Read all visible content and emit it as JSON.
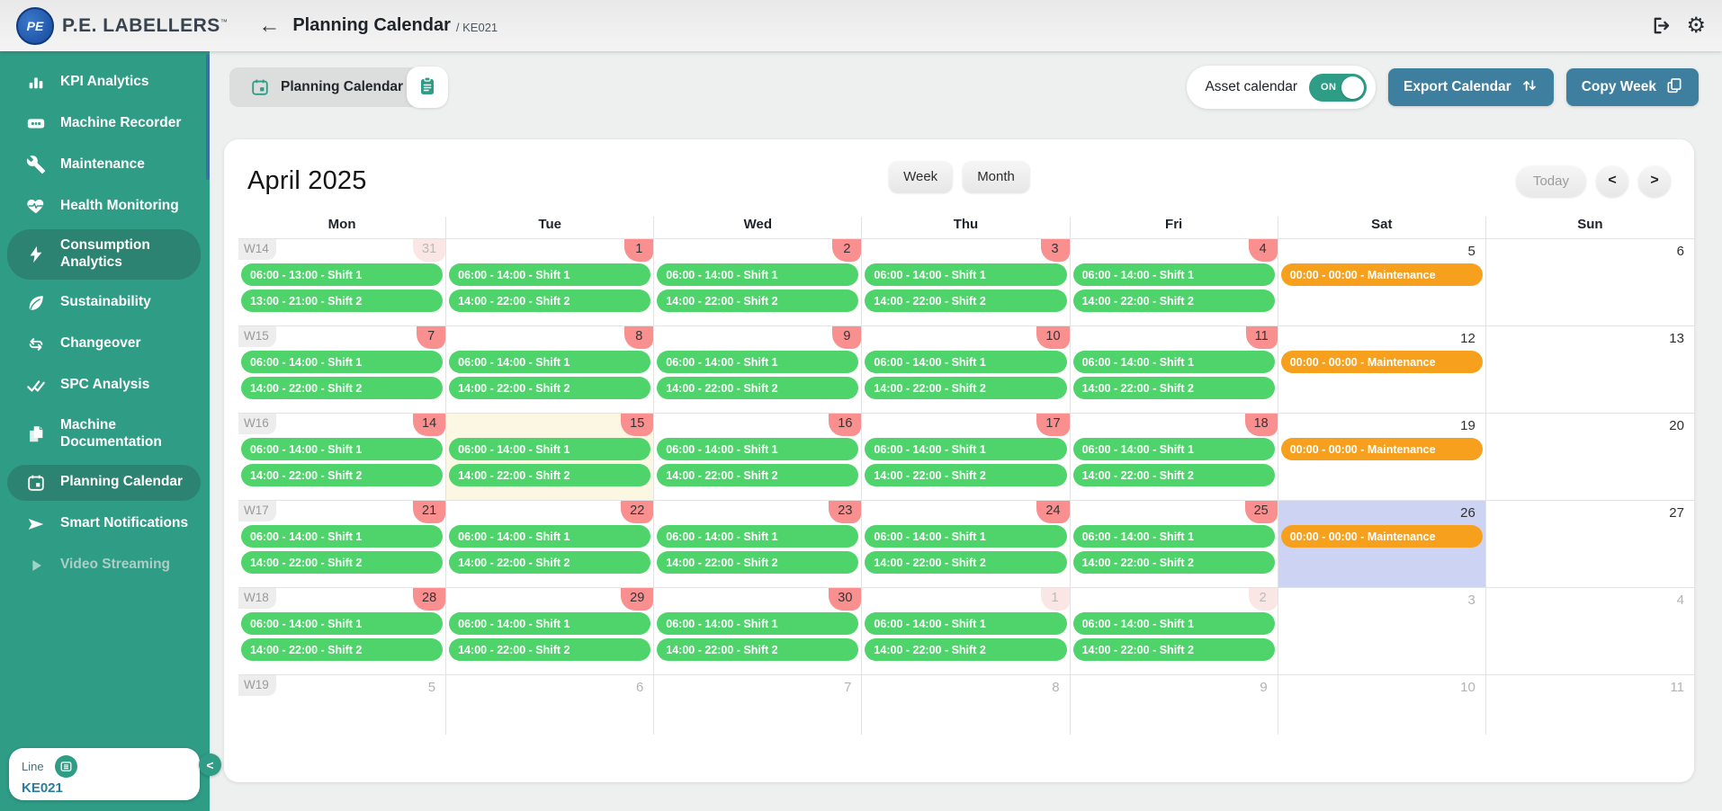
{
  "topbar": {
    "logo_text": "PE",
    "brand": "P.E. LABELLERS",
    "trademark": "™",
    "back_icon": "←",
    "title": "Planning Calendar",
    "subtitle": "/ KE021",
    "gear_icon": "⚙"
  },
  "sidebar": {
    "items": [
      {
        "label": "KPI Analytics",
        "icon": "kpi-analytics"
      },
      {
        "label": "Machine Recorder",
        "icon": "machine-recorder"
      },
      {
        "label": "Maintenance",
        "icon": "maintenance"
      },
      {
        "label": "Health Monitoring",
        "icon": "health-monitoring"
      },
      {
        "label": "Consumption Analytics",
        "icon": "consumption-analytics",
        "active": true
      },
      {
        "label": "Sustainability",
        "icon": "sustainability"
      },
      {
        "label": "Changeover",
        "icon": "changeover"
      },
      {
        "label": "SPC Analysis",
        "icon": "spc-analysis"
      },
      {
        "label": "Machine Documentation",
        "icon": "machine-documentation"
      },
      {
        "label": "Planning Calendar",
        "icon": "planning-calendar",
        "active": true
      },
      {
        "label": "Smart Notifications",
        "icon": "smart-notifications"
      },
      {
        "label": "Video Streaming",
        "icon": "video-streaming",
        "disabled": true
      }
    ],
    "line_card": {
      "label": "Line",
      "value": "KE021",
      "icon": "line-list"
    },
    "collapse_icon": "<"
  },
  "toolbar": {
    "tab_label": "Planning Calendar",
    "asset_calendar_label": "Asset calendar",
    "toggle_state": "ON",
    "export_label": "Export Calendar",
    "copy_label": "Copy Week"
  },
  "calendar": {
    "title": "April 2025",
    "view_week": "Week",
    "view_month": "Month",
    "today_label": "Today",
    "prev_icon": "<",
    "next_icon": ">",
    "day_headers": [
      "Mon",
      "Tue",
      "Wed",
      "Thu",
      "Fri",
      "Sat",
      "Sun"
    ],
    "weeks": [
      {
        "label": "W14",
        "days": [
          {
            "date": "31",
            "badge": "faded",
            "events": [
              {
                "label": "06:00 - 13:00 - Shift 1",
                "type": "shift"
              },
              {
                "label": "13:00 - 21:00 - Shift 2",
                "type": "shift"
              }
            ]
          },
          {
            "date": "1",
            "badge": "pink",
            "events": [
              {
                "label": "06:00 - 14:00 - Shift 1",
                "type": "shift"
              },
              {
                "label": "14:00 - 22:00 - Shift 2",
                "type": "shift"
              }
            ]
          },
          {
            "date": "2",
            "badge": "pink",
            "events": [
              {
                "label": "06:00 - 14:00 - Shift 1",
                "type": "shift"
              },
              {
                "label": "14:00 - 22:00 - Shift 2",
                "type": "shift"
              }
            ]
          },
          {
            "date": "3",
            "badge": "pink",
            "events": [
              {
                "label": "06:00 - 14:00 - Shift 1",
                "type": "shift"
              },
              {
                "label": "14:00 - 22:00 - Shift 2",
                "type": "shift"
              }
            ]
          },
          {
            "date": "4",
            "badge": "pink",
            "events": [
              {
                "label": "06:00 - 14:00 - Shift 1",
                "type": "shift"
              },
              {
                "label": "14:00 - 22:00 - Shift 2",
                "type": "shift"
              }
            ]
          },
          {
            "date": "5",
            "badge": "none",
            "events": [
              {
                "label": "00:00 - 00:00 - Maintenance",
                "type": "maintenance"
              }
            ]
          },
          {
            "date": "6",
            "badge": "none",
            "events": []
          }
        ]
      },
      {
        "label": "W15",
        "days": [
          {
            "date": "7",
            "badge": "pink",
            "events": [
              {
                "label": "06:00 - 14:00 - Shift 1",
                "type": "shift"
              },
              {
                "label": "14:00 - 22:00 - Shift 2",
                "type": "shift"
              }
            ]
          },
          {
            "date": "8",
            "badge": "pink",
            "events": [
              {
                "label": "06:00 - 14:00 - Shift 1",
                "type": "shift"
              },
              {
                "label": "14:00 - 22:00 - Shift 2",
                "type": "shift"
              }
            ]
          },
          {
            "date": "9",
            "badge": "pink",
            "events": [
              {
                "label": "06:00 - 14:00 - Shift 1",
                "type": "shift"
              },
              {
                "label": "14:00 - 22:00 - Shift 2",
                "type": "shift"
              }
            ]
          },
          {
            "date": "10",
            "badge": "pink",
            "events": [
              {
                "label": "06:00 - 14:00 - Shift 1",
                "type": "shift"
              },
              {
                "label": "14:00 - 22:00 - Shift 2",
                "type": "shift"
              }
            ]
          },
          {
            "date": "11",
            "badge": "pink",
            "events": [
              {
                "label": "06:00 - 14:00 - Shift 1",
                "type": "shift"
              },
              {
                "label": "14:00 - 22:00 - Shift 2",
                "type": "shift"
              }
            ]
          },
          {
            "date": "12",
            "badge": "none",
            "events": [
              {
                "label": "00:00 - 00:00 - Maintenance",
                "type": "maintenance"
              }
            ]
          },
          {
            "date": "13",
            "badge": "none",
            "events": []
          }
        ]
      },
      {
        "label": "W16",
        "days": [
          {
            "date": "14",
            "badge": "pink",
            "events": [
              {
                "label": "06:00 - 14:00 - Shift 1",
                "type": "shift"
              },
              {
                "label": "14:00 - 22:00 - Shift 2",
                "type": "shift"
              }
            ]
          },
          {
            "date": "15",
            "badge": "pink",
            "cell": "today",
            "events": [
              {
                "label": "06:00 - 14:00 - Shift 1",
                "type": "shift"
              },
              {
                "label": "14:00 - 22:00 - Shift 2",
                "type": "shift"
              }
            ]
          },
          {
            "date": "16",
            "badge": "pink",
            "events": [
              {
                "label": "06:00 - 14:00 - Shift 1",
                "type": "shift"
              },
              {
                "label": "14:00 - 22:00 - Shift 2",
                "type": "shift"
              }
            ]
          },
          {
            "date": "17",
            "badge": "pink",
            "events": [
              {
                "label": "06:00 - 14:00 - Shift 1",
                "type": "shift"
              },
              {
                "label": "14:00 - 22:00 - Shift 2",
                "type": "shift"
              }
            ]
          },
          {
            "date": "18",
            "badge": "pink",
            "events": [
              {
                "label": "06:00 - 14:00 - Shift 1",
                "type": "shift"
              },
              {
                "label": "14:00 - 22:00 - Shift 2",
                "type": "shift"
              }
            ]
          },
          {
            "date": "19",
            "badge": "none",
            "events": [
              {
                "label": "00:00 - 00:00 - Maintenance",
                "type": "maintenance"
              }
            ]
          },
          {
            "date": "20",
            "badge": "none",
            "events": []
          }
        ]
      },
      {
        "label": "W17",
        "days": [
          {
            "date": "21",
            "badge": "pink",
            "events": [
              {
                "label": "06:00 - 14:00 - Shift 1",
                "type": "shift"
              },
              {
                "label": "14:00 - 22:00 - Shift 2",
                "type": "shift"
              }
            ]
          },
          {
            "date": "22",
            "badge": "pink",
            "events": [
              {
                "label": "06:00 - 14:00 - Shift 1",
                "type": "shift"
              },
              {
                "label": "14:00 - 22:00 - Shift 2",
                "type": "shift"
              }
            ]
          },
          {
            "date": "23",
            "badge": "pink",
            "events": [
              {
                "label": "06:00 - 14:00 - Shift 1",
                "type": "shift"
              },
              {
                "label": "14:00 - 22:00 - Shift 2",
                "type": "shift"
              }
            ]
          },
          {
            "date": "24",
            "badge": "pink",
            "events": [
              {
                "label": "06:00 - 14:00 - Shift 1",
                "type": "shift"
              },
              {
                "label": "14:00 - 22:00 - Shift 2",
                "type": "shift"
              }
            ]
          },
          {
            "date": "25",
            "badge": "pink",
            "events": [
              {
                "label": "06:00 - 14:00 - Shift 1",
                "type": "shift"
              },
              {
                "label": "14:00 - 22:00 - Shift 2",
                "type": "shift"
              }
            ]
          },
          {
            "date": "26",
            "badge": "none",
            "cell": "selected",
            "events": [
              {
                "label": "00:00 - 00:00 - Maintenance",
                "type": "maintenance"
              }
            ]
          },
          {
            "date": "27",
            "badge": "none",
            "events": []
          }
        ]
      },
      {
        "label": "W18",
        "days": [
          {
            "date": "28",
            "badge": "pink",
            "events": [
              {
                "label": "06:00 - 14:00 - Shift 1",
                "type": "shift"
              },
              {
                "label": "14:00 - 22:00 - Shift 2",
                "type": "shift"
              }
            ]
          },
          {
            "date": "29",
            "badge": "pink",
            "events": [
              {
                "label": "06:00 - 14:00 - Shift 1",
                "type": "shift"
              },
              {
                "label": "14:00 - 22:00 - Shift 2",
                "type": "shift"
              }
            ]
          },
          {
            "date": "30",
            "badge": "pink",
            "events": [
              {
                "label": "06:00 - 14:00 - Shift 1",
                "type": "shift"
              },
              {
                "label": "14:00 - 22:00 - Shift 2",
                "type": "shift"
              }
            ]
          },
          {
            "date": "1",
            "badge": "faded",
            "events": [
              {
                "label": "06:00 - 14:00 - Shift 1",
                "type": "shift"
              },
              {
                "label": "14:00 - 22:00 - Shift 2",
                "type": "shift"
              }
            ]
          },
          {
            "date": "2",
            "badge": "faded",
            "events": [
              {
                "label": "06:00 - 14:00 - Shift 1",
                "type": "shift"
              },
              {
                "label": "14:00 - 22:00 - Shift 2",
                "type": "shift"
              }
            ]
          },
          {
            "date": "3",
            "badge": "none",
            "muted": true,
            "events": []
          },
          {
            "date": "4",
            "badge": "none",
            "muted": true,
            "events": []
          }
        ]
      },
      {
        "label": "W19",
        "short": true,
        "days": [
          {
            "date": "5",
            "badge": "none",
            "muted": true,
            "events": []
          },
          {
            "date": "6",
            "badge": "none",
            "muted": true,
            "events": []
          },
          {
            "date": "7",
            "badge": "none",
            "muted": true,
            "events": []
          },
          {
            "date": "8",
            "badge": "none",
            "muted": true,
            "events": []
          },
          {
            "date": "9",
            "badge": "none",
            "muted": true,
            "events": []
          },
          {
            "date": "10",
            "badge": "none",
            "muted": true,
            "events": []
          },
          {
            "date": "11",
            "badge": "none",
            "muted": true,
            "events": []
          }
        ]
      }
    ]
  },
  "colors": {
    "sidebar_teal": "#2F9C86",
    "sidebar_active": "#2C8371",
    "shift_green": "#4FD46B",
    "maintenance_orange": "#F6A01E",
    "badge_pink": "#F98F8F",
    "badge_faded": "#FBE6E6",
    "button_blue": "#3E7E9E",
    "today_cell_bg": "#FCF7E2",
    "selected_cell_bg": "#CDD3F3",
    "logo_blue": "#17499C",
    "scrollbar_blue": "#3E6FA3"
  }
}
